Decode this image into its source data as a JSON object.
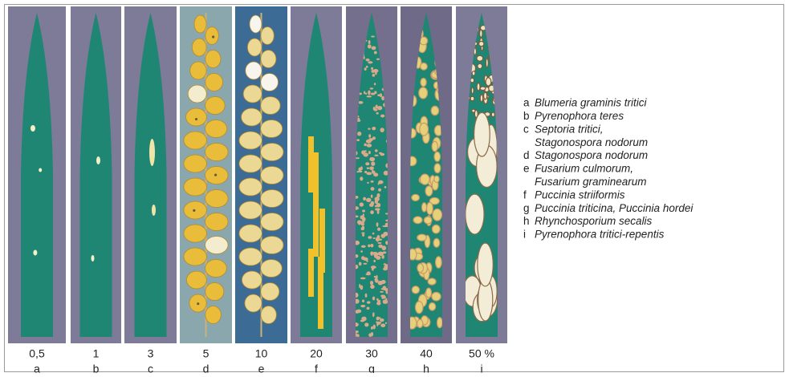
{
  "panels": [
    {
      "severity": "0,5",
      "letter": "a"
    },
    {
      "severity": "1",
      "letter": "b"
    },
    {
      "severity": "3",
      "letter": "c"
    },
    {
      "severity": "5",
      "letter": "d"
    },
    {
      "severity": "10",
      "letter": "e"
    },
    {
      "severity": "20",
      "letter": "f"
    },
    {
      "severity": "30",
      "letter": "g"
    },
    {
      "severity": "40",
      "letter": "h"
    },
    {
      "severity": "50 %",
      "letter": "i"
    }
  ],
  "legend": [
    {
      "letter": "a",
      "lines": [
        "Blumeria graminis tritici"
      ]
    },
    {
      "letter": "b",
      "lines": [
        "Pyrenophora teres"
      ]
    },
    {
      "letter": "c",
      "lines": [
        "Septoria tritici,",
        "Stagonospora nodorum"
      ]
    },
    {
      "letter": "d",
      "lines": [
        "Stagonospora nodorum"
      ]
    },
    {
      "letter": "e",
      "lines": [
        "Fusarium culmorum,",
        "Fusarium graminearum"
      ]
    },
    {
      "letter": "f",
      "lines": [
        "Puccinia striiformis"
      ]
    },
    {
      "letter": "g",
      "lines": [
        "Puccinia triticina, Puccinia hordei"
      ]
    },
    {
      "letter": "h",
      "lines": [
        "Rhynchosporium secalis"
      ]
    },
    {
      "letter": "i",
      "lines": [
        "Pyrenophora tritici-repentis"
      ]
    }
  ]
}
